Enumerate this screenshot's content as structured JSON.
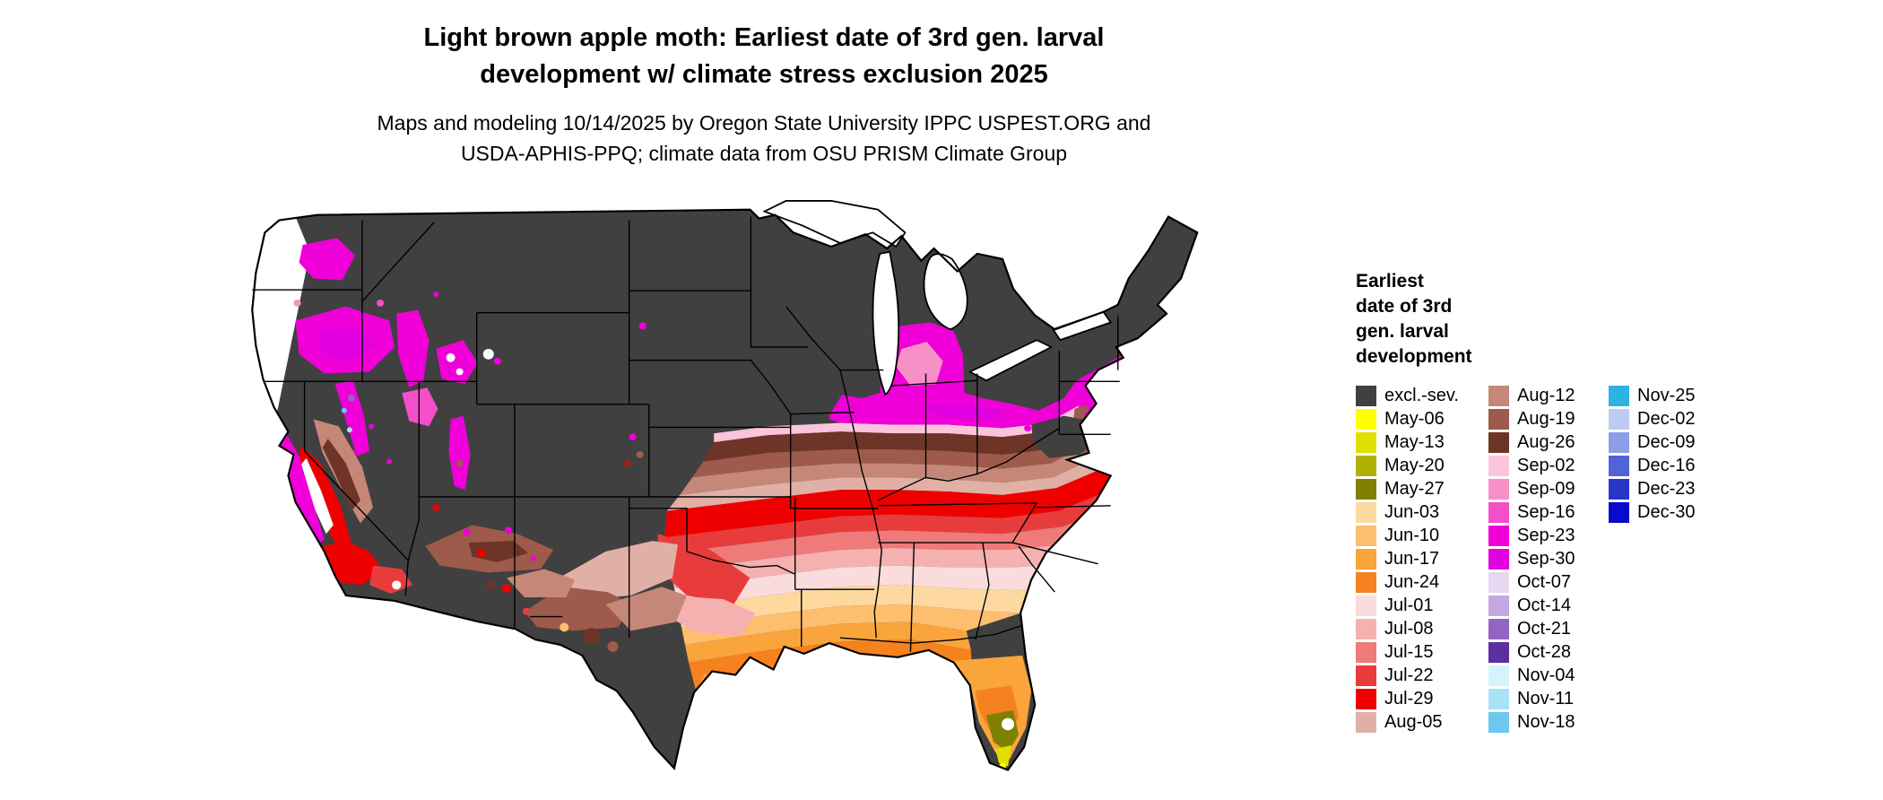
{
  "header": {
    "title_line1": "Light brown apple moth: Earliest date of 3rd gen. larval",
    "title_line2": "development w/ climate stress exclusion 2025",
    "subtitle_line1": "Maps and modeling 10/14/2025 by Oregon State University IPPC USPEST.ORG and",
    "subtitle_line2": "USDA-APHIS-PPQ; climate data from OSU PRISM Climate Group"
  },
  "map": {
    "region": "Continental United States"
  },
  "legend": {
    "title_lines": [
      "Earliest",
      "date of 3rd",
      "gen. larval",
      "development"
    ],
    "columns": [
      [
        {
          "label": "excl.-sev.",
          "color": "#404040"
        },
        {
          "label": "May-06",
          "color": "#FFFF00"
        },
        {
          "label": "May-13",
          "color": "#E0E000"
        },
        {
          "label": "May-20",
          "color": "#B0B000"
        },
        {
          "label": "May-27",
          "color": "#808000"
        },
        {
          "label": "Jun-03",
          "color": "#FDD9A0"
        },
        {
          "label": "Jun-10",
          "color": "#FDBE6E"
        },
        {
          "label": "Jun-17",
          "color": "#FAA43C"
        },
        {
          "label": "Jun-24",
          "color": "#F5821E"
        },
        {
          "label": "Jul-01",
          "color": "#FADCDC"
        },
        {
          "label": "Jul-08",
          "color": "#F5B0B0"
        },
        {
          "label": "Jul-15",
          "color": "#EF7A7A"
        },
        {
          "label": "Jul-22",
          "color": "#E83C3C"
        },
        {
          "label": "Jul-29",
          "color": "#EE0000"
        },
        {
          "label": "Aug-05",
          "color": "#E0B0A6"
        }
      ],
      [
        {
          "label": "Aug-12",
          "color": "#C58878"
        },
        {
          "label": "Aug-19",
          "color": "#9E5A4A"
        },
        {
          "label": "Aug-26",
          "color": "#6E3428"
        },
        {
          "label": "Sep-02",
          "color": "#FBC4DC"
        },
        {
          "label": "Sep-09",
          "color": "#F890C8"
        },
        {
          "label": "Sep-16",
          "color": "#F44EC8"
        },
        {
          "label": "Sep-23",
          "color": "#F000D8"
        },
        {
          "label": "Sep-30",
          "color": "#E000E0"
        },
        {
          "label": "Oct-07",
          "color": "#E6D8F0"
        },
        {
          "label": "Oct-14",
          "color": "#C4A8E0"
        },
        {
          "label": "Oct-21",
          "color": "#9464C4"
        },
        {
          "label": "Oct-28",
          "color": "#5C2E9E"
        },
        {
          "label": "Nov-04",
          "color": "#D6F2FC"
        },
        {
          "label": "Nov-11",
          "color": "#A8E2F6"
        },
        {
          "label": "Nov-18",
          "color": "#6CC8EE"
        }
      ],
      [
        {
          "label": "Nov-25",
          "color": "#2EB2E6"
        },
        {
          "label": "Dec-02",
          "color": "#BCCCF2"
        },
        {
          "label": "Dec-09",
          "color": "#8C9EE6"
        },
        {
          "label": "Dec-16",
          "color": "#5064D8"
        },
        {
          "label": "Dec-23",
          "color": "#2836C8"
        },
        {
          "label": "Dec-30",
          "color": "#0A0ACC"
        }
      ]
    ]
  }
}
